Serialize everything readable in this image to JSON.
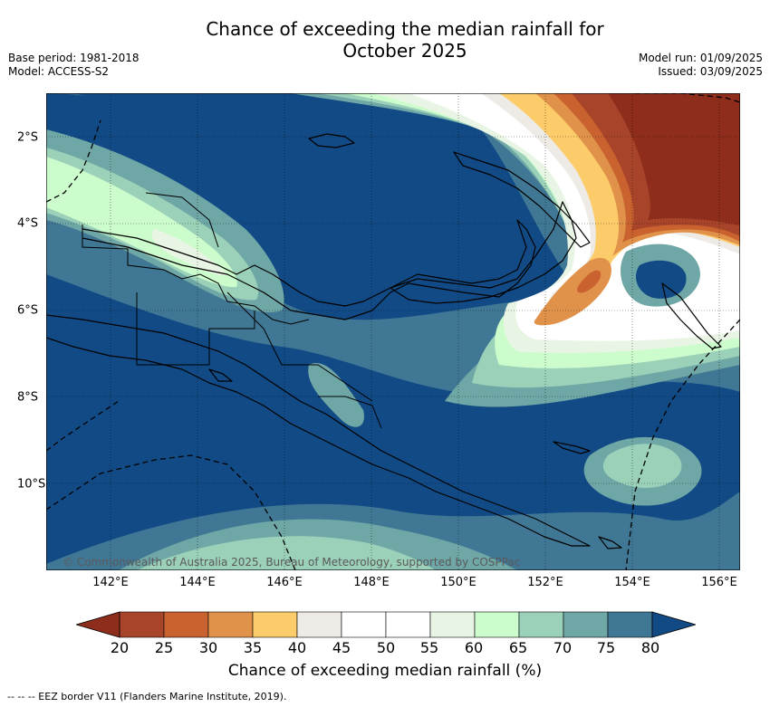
{
  "title_line1": "Chance of exceeding the median rainfall for",
  "title_line2": "October 2025",
  "meta_left": [
    "Base period: 1981-2018",
    "Model: ACCESS-S2"
  ],
  "meta_right": [
    "Model run: 01/09/2025",
    "Issued: 03/09/2025"
  ],
  "credit": "© Commonwealth of Australia 2025, Bureau of Meteorology, supported by COSPPac",
  "x_ticks": [
    "142°E",
    "144°E",
    "146°E",
    "148°E",
    "150°E",
    "152°E",
    "154°E",
    "156°E"
  ],
  "y_ticks": [
    "2°S",
    "4°S",
    "6°S",
    "8°S",
    "10°S"
  ],
  "colorbar": {
    "ticks": [
      "20",
      "25",
      "30",
      "35",
      "40",
      "45",
      "50",
      "55",
      "60",
      "65",
      "70",
      "75",
      "80"
    ],
    "label": "Chance of exceeding median rainfall (%)",
    "under_color": "#8e2d1c",
    "over_color": "#114a85",
    "colors": [
      "#a8442a",
      "#c9622f",
      "#e0924a",
      "#fdcc6a",
      "#eeebe6",
      "#ffffff",
      "#ffffff",
      "#e9f5e4",
      "#ccfccc",
      "#9bd0b9",
      "#6fa6a6",
      "#3f7795"
    ]
  },
  "footer": "--  --  -- EEZ border V11 (Flanders Marine Institute, 2019)."
}
